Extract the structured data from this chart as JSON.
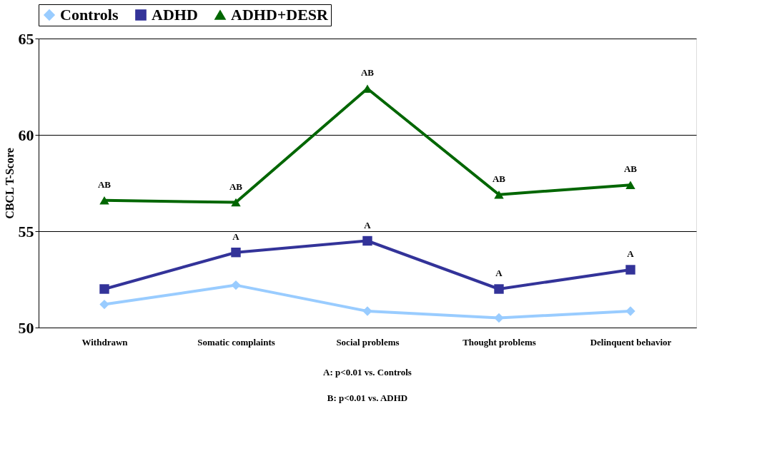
{
  "chart_data": {
    "type": "line",
    "ylabel": "CBCL T-Score",
    "categories": [
      "Withdrawn",
      "Somatic complaints",
      "Social problems",
      "Thought problems",
      "Delinquent behavior"
    ],
    "series": [
      {
        "name": "Controls",
        "color": "#99ccff",
        "marker": "diamond",
        "values": [
          51.2,
          52.2,
          50.85,
          50.5,
          50.85
        ]
      },
      {
        "name": "ADHD",
        "color": "#333399",
        "marker": "square",
        "values": [
          52.0,
          53.9,
          54.5,
          52.0,
          53.0
        ]
      },
      {
        "name": "ADHD+DESR",
        "color": "#006600",
        "marker": "triangle",
        "values": [
          56.6,
          56.5,
          62.4,
          56.9,
          57.4
        ]
      }
    ],
    "ylim": [
      50,
      65
    ],
    "yticks": [
      50,
      55,
      60,
      65
    ],
    "grid": "y",
    "legend": "top",
    "line_style": "solid",
    "annotations": [
      {
        "text": "AB",
        "x": "Withdrawn",
        "y": 56.6
      },
      {
        "text": "AB",
        "x": "Somatic complaints",
        "y": 56.5
      },
      {
        "text": "AB",
        "x": "Social problems",
        "y": 62.4
      },
      {
        "text": "AB",
        "x": "Thought problems",
        "y": 56.9
      },
      {
        "text": "AB",
        "x": "Delinquent behavior",
        "y": 57.4
      },
      {
        "text": "A",
        "x": "Somatic complaints",
        "y": 53.9
      },
      {
        "text": "A",
        "x": "Social problems",
        "y": 54.5
      },
      {
        "text": "A",
        "x": "Thought problems",
        "y": 52.0
      },
      {
        "text": "A",
        "x": "Delinquent behavior",
        "y": 53.0
      },
      "A: p<0.01 vs. Controls",
      "B: p<0.01 vs. ADHD"
    ]
  }
}
